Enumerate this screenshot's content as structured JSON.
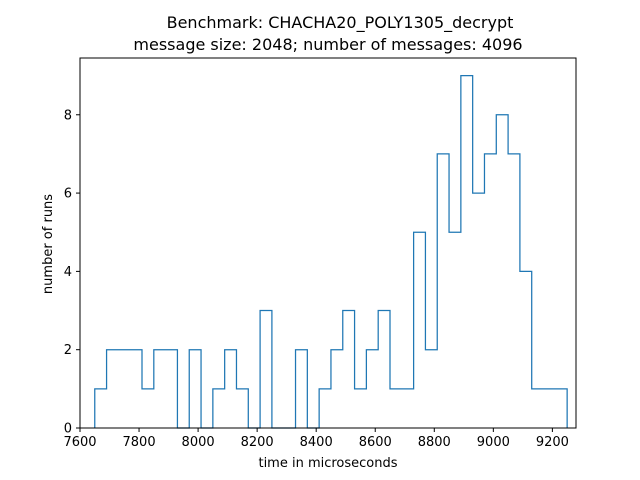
{
  "chart_data": {
    "type": "histogram",
    "title": "Benchmark: CHACHA20_POLY1305_decrypt",
    "subtitle": "message size: 2048; number of messages: 4096",
    "xlabel": "time in microseconds",
    "ylabel": "number of runs",
    "xlim": [
      7600,
      9280
    ],
    "ylim": [
      0,
      9.45
    ],
    "xticks": [
      7600,
      7800,
      8000,
      8200,
      8400,
      8600,
      8800,
      9000,
      9200
    ],
    "yticks": [
      0,
      2,
      4,
      6,
      8
    ],
    "grid": false,
    "legend": "none",
    "histtype": "step",
    "bin_edges": [
      7650,
      7690,
      7730,
      7770,
      7810,
      7850,
      7890,
      7930,
      7970,
      8010,
      8050,
      8090,
      8130,
      8170,
      8210,
      8250,
      8290,
      8330,
      8370,
      8410,
      8450,
      8490,
      8530,
      8570,
      8610,
      8650,
      8690,
      8730,
      8770,
      8810,
      8850,
      8890,
      8930,
      8970,
      9010,
      9050,
      9090,
      9130,
      9170,
      9210,
      9250
    ],
    "counts": [
      1,
      2,
      2,
      2,
      1,
      2,
      2,
      0,
      2,
      0,
      1,
      2,
      1,
      0,
      3,
      0,
      0,
      2,
      0,
      1,
      2,
      3,
      1,
      2,
      3,
      1,
      1,
      5,
      2,
      7,
      5,
      9,
      6,
      7,
      8,
      7,
      4,
      1,
      1,
      1
    ],
    "line_color": "#1f77b4"
  }
}
